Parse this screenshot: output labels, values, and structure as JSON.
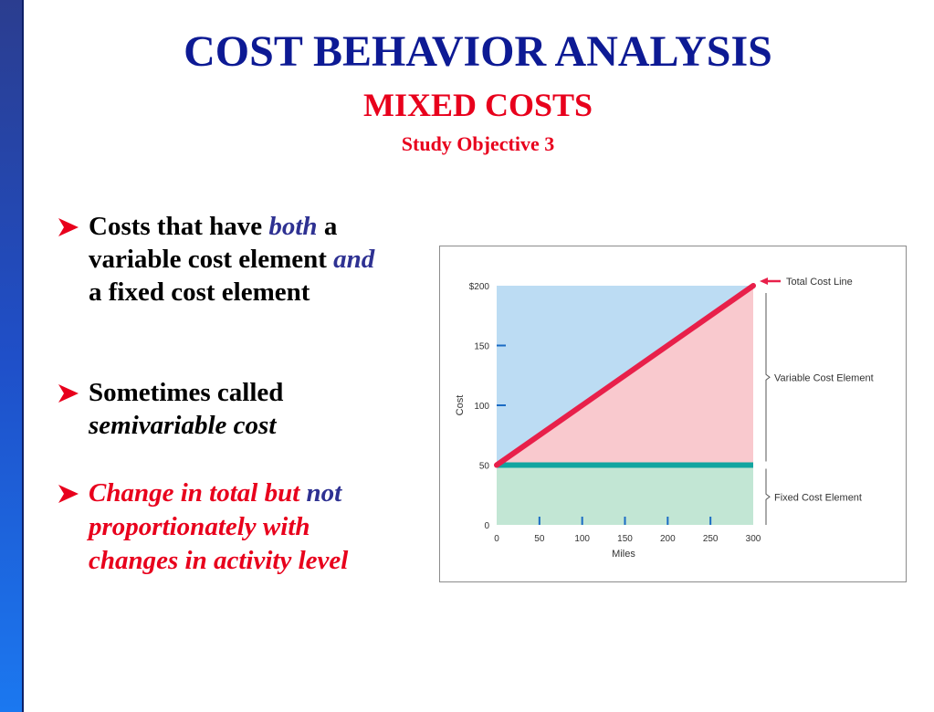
{
  "slide": {
    "title": "COST BEHAVIOR ANALYSIS",
    "subtitle": "MIXED COSTS",
    "objective": "Study Objective 3"
  },
  "bullets": [
    {
      "parts": [
        {
          "text": "Costs that have ",
          "style": "normal"
        },
        {
          "text": "both",
          "style": "blue-italic"
        },
        {
          "text": " a variable cost element ",
          "style": "normal"
        },
        {
          "text": "and",
          "style": "blue-italic"
        },
        {
          "text": " a fixed cost element",
          "style": "normal"
        }
      ]
    },
    {
      "parts": [
        {
          "text": "Sometimes called ",
          "style": "normal"
        },
        {
          "text": "semivariable cost",
          "style": "italic"
        }
      ]
    },
    {
      "parts": [
        {
          "text": "Change in total but ",
          "style": "red-italic"
        },
        {
          "text": "not",
          "style": "blue-italic"
        },
        {
          "text": " proportionately with changes in activity level",
          "style": "red-italic"
        }
      ]
    }
  ],
  "chart_data": {
    "type": "area",
    "title": "",
    "xlabel": "Miles",
    "ylabel": "Cost",
    "xlim": [
      0,
      300
    ],
    "ylim": [
      0,
      200
    ],
    "x_ticks": [
      0,
      50,
      100,
      150,
      200,
      250,
      300
    ],
    "y_ticks": [
      0,
      50,
      100,
      150,
      200
    ],
    "y_tick_labels": [
      "0",
      "50",
      "100",
      "150",
      "$200"
    ],
    "series": [
      {
        "name": "Total Cost Line",
        "x": [
          0,
          300
        ],
        "y": [
          50,
          200
        ],
        "color": "#e8204a"
      },
      {
        "name": "Fixed Cost Element",
        "x": [
          0,
          300
        ],
        "y": [
          50,
          50
        ],
        "color": "#12a5a0"
      }
    ],
    "annotations": [
      {
        "text": "Total Cost Line",
        "target": "total-cost-line"
      },
      {
        "text": "Variable Cost Element",
        "range": [
          50,
          200
        ]
      },
      {
        "text": "Fixed Cost Element",
        "range": [
          0,
          50
        ]
      }
    ],
    "colors": {
      "upper_background": "#bcdcf3",
      "variable_region": "#f9c9ce",
      "fixed_region": "#c2e6d4",
      "total_line": "#e8204a",
      "fixed_line": "#12a5a0",
      "tick": "#1a6bc4"
    },
    "grid": false,
    "legend": "none"
  }
}
